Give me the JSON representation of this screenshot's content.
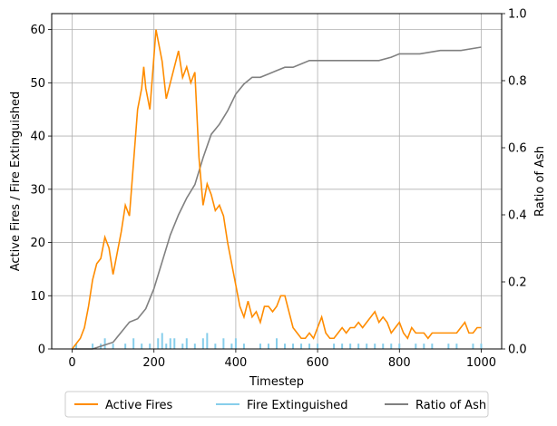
{
  "chart_data": {
    "type": "line",
    "title": "",
    "xlabel": "Timestep",
    "ylabel_left": "Active Fires / Fire Extinguished",
    "ylabel_right": "Ratio of Ash",
    "xlim": [
      -50,
      1050
    ],
    "ylim_left": [
      0,
      63
    ],
    "ylim_right": [
      0,
      1.0
    ],
    "xticks": [
      0,
      200,
      400,
      600,
      800,
      1000
    ],
    "yticks_left": [
      0,
      10,
      20,
      30,
      40,
      50,
      60
    ],
    "yticks_right": [
      0.0,
      0.2,
      0.4,
      0.6,
      0.8,
      1.0
    ],
    "grid": true,
    "legend_placement": "bottom-center",
    "colors": {
      "active": "#ff8c00",
      "extinguished": "#87ceeb",
      "ash": "#808080"
    },
    "series": [
      {
        "name": "Active Fires",
        "axis": "left",
        "x": [
          0,
          10,
          20,
          30,
          40,
          50,
          60,
          70,
          80,
          90,
          100,
          110,
          120,
          130,
          140,
          150,
          160,
          170,
          175,
          180,
          190,
          200,
          205,
          210,
          220,
          230,
          240,
          250,
          260,
          270,
          280,
          290,
          300,
          310,
          320,
          330,
          340,
          350,
          360,
          370,
          380,
          390,
          400,
          410,
          420,
          430,
          440,
          450,
          460,
          470,
          480,
          490,
          500,
          510,
          520,
          530,
          540,
          550,
          560,
          570,
          580,
          590,
          600,
          610,
          620,
          630,
          640,
          650,
          660,
          670,
          680,
          690,
          700,
          710,
          720,
          730,
          740,
          750,
          760,
          770,
          780,
          790,
          800,
          810,
          820,
          830,
          840,
          850,
          860,
          870,
          880,
          890,
          900,
          910,
          920,
          930,
          940,
          950,
          960,
          970,
          980,
          990,
          1000
        ],
        "y": [
          0,
          1,
          2,
          4,
          8,
          13,
          16,
          17,
          21,
          19,
          14,
          18,
          22,
          27,
          25,
          35,
          45,
          49,
          53,
          49,
          45,
          55,
          60,
          58,
          54,
          47,
          50,
          53,
          56,
          51,
          53,
          50,
          52,
          36,
          27,
          31,
          29,
          26,
          27,
          25,
          20,
          16,
          12,
          8,
          6,
          9,
          6,
          7,
          5,
          8,
          8,
          7,
          8,
          10,
          10,
          7,
          4,
          3,
          2,
          2,
          3,
          2,
          4,
          6,
          3,
          2,
          2,
          3,
          4,
          3,
          4,
          4,
          5,
          4,
          5,
          6,
          7,
          5,
          6,
          5,
          3,
          4,
          5,
          3,
          2,
          4,
          3,
          3,
          3,
          2,
          3,
          3,
          3,
          3,
          3,
          3,
          3,
          4,
          5,
          3,
          3,
          4,
          4
        ]
      },
      {
        "name": "Fire Extinguished",
        "axis": "left",
        "x": [
          10,
          30,
          50,
          70,
          80,
          100,
          110,
          130,
          150,
          170,
          190,
          210,
          220,
          230,
          240,
          250,
          270,
          280,
          300,
          320,
          330,
          350,
          370,
          390,
          400,
          420,
          440,
          460,
          480,
          500,
          520,
          540,
          560,
          580,
          600,
          620,
          640,
          660,
          680,
          700,
          720,
          740,
          760,
          780,
          800,
          820,
          840,
          860,
          880,
          900,
          920,
          940,
          960,
          980,
          1000
        ],
        "y": [
          1,
          0,
          1,
          1,
          2,
          1,
          0,
          1,
          2,
          1,
          1,
          2,
          3,
          1,
          2,
          2,
          1,
          2,
          1,
          2,
          3,
          1,
          2,
          1,
          2,
          1,
          0,
          1,
          1,
          2,
          1,
          1,
          1,
          1,
          1,
          0,
          1,
          1,
          1,
          1,
          1,
          1,
          1,
          1,
          1,
          0,
          1,
          1,
          1,
          0,
          1,
          1,
          0,
          1,
          1
        ]
      },
      {
        "name": "Ratio of Ash",
        "axis": "right",
        "x": [
          0,
          50,
          100,
          120,
          140,
          160,
          180,
          200,
          220,
          240,
          260,
          280,
          300,
          320,
          340,
          360,
          380,
          400,
          420,
          440,
          460,
          480,
          500,
          520,
          540,
          560,
          580,
          600,
          650,
          700,
          750,
          780,
          800,
          850,
          900,
          950,
          1000
        ],
        "y": [
          0,
          0.0,
          0.02,
          0.05,
          0.08,
          0.09,
          0.12,
          0.18,
          0.26,
          0.34,
          0.4,
          0.45,
          0.49,
          0.57,
          0.64,
          0.67,
          0.71,
          0.76,
          0.79,
          0.81,
          0.81,
          0.82,
          0.83,
          0.84,
          0.84,
          0.85,
          0.86,
          0.86,
          0.86,
          0.86,
          0.86,
          0.87,
          0.88,
          0.88,
          0.89,
          0.89,
          0.9
        ]
      }
    ]
  }
}
